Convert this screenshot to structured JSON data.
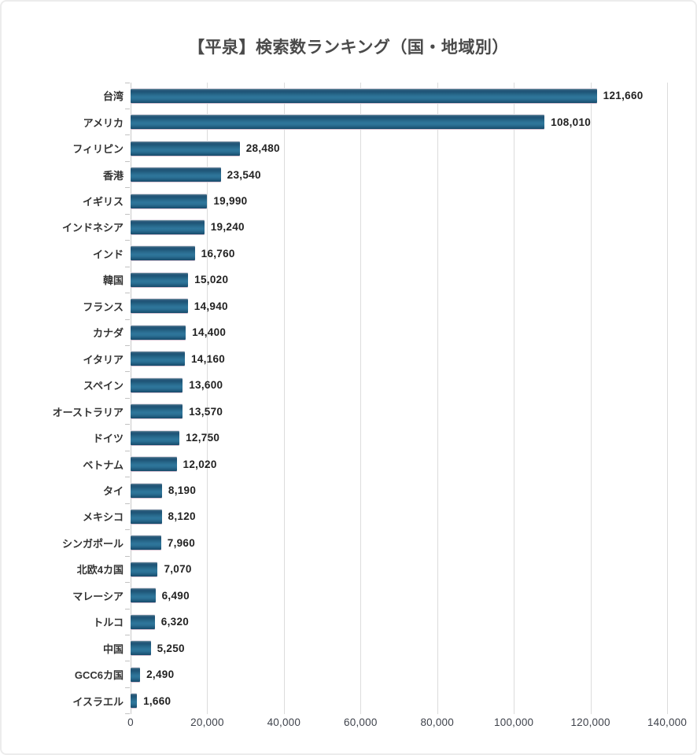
{
  "title": "【平泉】検索数ランキング（国・地域別）",
  "chart_data": {
    "type": "bar",
    "orientation": "horizontal",
    "title": "【平泉】検索数ランキング（国・地域別）",
    "categories": [
      "台湾",
      "アメリカ",
      "フィリピン",
      "香港",
      "イギリス",
      "インドネシア",
      "インド",
      "韓国",
      "フランス",
      "カナダ",
      "イタリア",
      "スペイン",
      "オーストラリア",
      "ドイツ",
      "ベトナム",
      "タイ",
      "メキシコ",
      "シンガポール",
      "北欧4カ国",
      "マレーシア",
      "トルコ",
      "中国",
      "GCC6カ国",
      "イスラエル"
    ],
    "values": [
      121660,
      108010,
      28480,
      23540,
      19990,
      19240,
      16760,
      15020,
      14940,
      14400,
      14160,
      13600,
      13570,
      12750,
      12020,
      8190,
      8120,
      7960,
      7070,
      6490,
      6320,
      5250,
      2490,
      1660
    ],
    "values_formatted": [
      "121,660",
      "108,010",
      "28,480",
      "23,540",
      "19,990",
      "19,240",
      "16,760",
      "15,020",
      "14,940",
      "14,400",
      "14,160",
      "13,600",
      "13,570",
      "12,750",
      "12,020",
      "8,190",
      "8,120",
      "7,960",
      "7,070",
      "6,490",
      "6,320",
      "5,250",
      "2,490",
      "1,660"
    ],
    "xlim": [
      0,
      140000
    ],
    "xticks": [
      "0",
      "20,000",
      "40,000",
      "60,000",
      "80,000",
      "100,000",
      "120,000",
      "140,000"
    ],
    "grid": "vertical-gridlines-on",
    "legend": "none",
    "xlabel": "",
    "ylabel": "",
    "colors": {
      "bar_main": "#2B6E92",
      "bar_dark_edge": "#174A6A",
      "bar_glow_under": "#D8C3D3",
      "gridline": "#DCDCDC",
      "title_text": "#4A4A4A",
      "category_text": "#333333",
      "value_text": "#222222",
      "axis_text": "#3F434C",
      "background": "#FFFFFF"
    }
  }
}
